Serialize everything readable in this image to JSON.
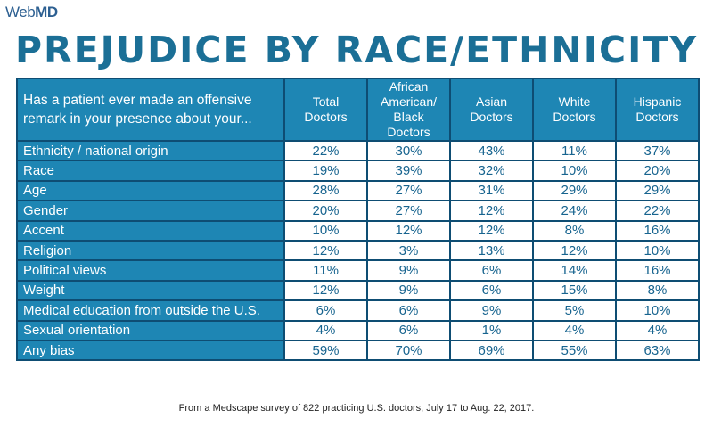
{
  "logo": {
    "brand_web": "Web",
    "brand_md": "MD"
  },
  "title": "PREJUDICE BY RACE/ETHNICITY",
  "footnote": "From a Medscape survey of 822 practicing U.S. doctors, July 17 to Aug. 22, 2017.",
  "colors": {
    "header_bg": "#1e86b4",
    "border": "#0e4d73",
    "title": "#1b6f96",
    "value_text": "#17648f"
  },
  "chart_data": {
    "type": "table",
    "title": "PREJUDICE BY RACE/ETHNICITY",
    "question": "Has a patient ever made an offensive remark in your presence about your...",
    "columns": [
      {
        "line1": "Total",
        "line2": "Doctors",
        "line3": ""
      },
      {
        "line1": "African American/",
        "line2": "Black",
        "line3": "Doctors"
      },
      {
        "line1": "Asian",
        "line2": "Doctors",
        "line3": ""
      },
      {
        "line1": "White",
        "line2": "Doctors",
        "line3": ""
      },
      {
        "line1": "Hispanic",
        "line2": "Doctors",
        "line3": ""
      }
    ],
    "rows": [
      {
        "label": "Ethnicity / national origin",
        "values": [
          "22%",
          "30%",
          "43%",
          "11%",
          "37%"
        ]
      },
      {
        "label": "Race",
        "values": [
          "19%",
          "39%",
          "32%",
          "10%",
          "20%"
        ]
      },
      {
        "label": "Age",
        "values": [
          "28%",
          "27%",
          "31%",
          "29%",
          "29%"
        ]
      },
      {
        "label": "Gender",
        "values": [
          "20%",
          "27%",
          "12%",
          "24%",
          "22%"
        ]
      },
      {
        "label": "Accent",
        "values": [
          "10%",
          "12%",
          "12%",
          "8%",
          "16%"
        ]
      },
      {
        "label": "Religion",
        "values": [
          "12%",
          "3%",
          "13%",
          "12%",
          "10%"
        ]
      },
      {
        "label": "Political views",
        "values": [
          "11%",
          "9%",
          "6%",
          "14%",
          "16%"
        ]
      },
      {
        "label": "Weight",
        "values": [
          "12%",
          "9%",
          "6%",
          "15%",
          "8%"
        ]
      },
      {
        "label": "Medical education from outside the U.S.",
        "values": [
          "6%",
          "6%",
          "9%",
          "5%",
          "10%"
        ]
      },
      {
        "label": "Sexual orientation",
        "values": [
          "4%",
          "6%",
          "1%",
          "4%",
          "4%"
        ]
      },
      {
        "label": "Any bias",
        "values": [
          "59%",
          "70%",
          "69%",
          "55%",
          "63%"
        ]
      }
    ]
  }
}
